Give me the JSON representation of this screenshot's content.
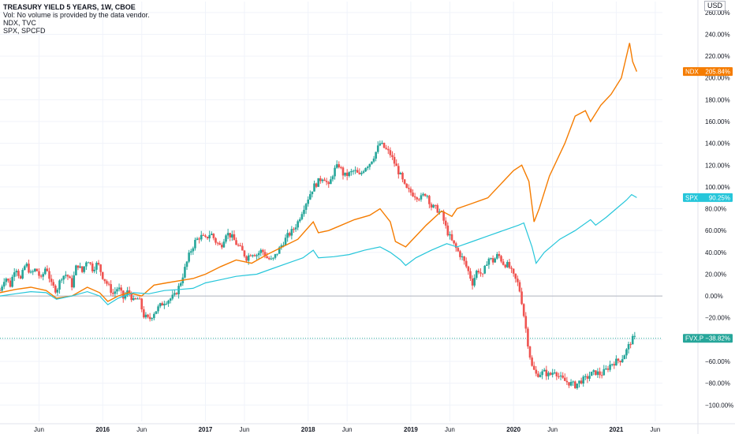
{
  "legend": {
    "title": "TREASURY YIELD 5 YEARS, 1W, CBOE",
    "vol_note": "Vol: No volume is provided by the data vendor.",
    "series_ndx": "NDX, TVC",
    "series_spx": "SPX, SPCFD"
  },
  "currency_label": "USD",
  "colors": {
    "ndx": "#f57c00",
    "spx": "#26c6da",
    "up": "#26a69a",
    "down": "#ef5350",
    "grid": "#f0f3fa",
    "zero_line": "#b2b5be"
  },
  "chart_data": {
    "type": "line",
    "y_unit": "%",
    "yticks": [
      "260.00%",
      "240.00%",
      "220.00%",
      "200.00%",
      "180.00%",
      "160.00%",
      "140.00%",
      "120.00%",
      "100.00%",
      "80.00%",
      "60.00%",
      "40.00%",
      "20.00%",
      "0.00%",
      "−20.00%",
      "−40.00%",
      "−60.00%",
      "−80.00%",
      "−100.00%"
    ],
    "ytick_values": [
      260,
      240,
      220,
      200,
      180,
      160,
      140,
      120,
      100,
      80,
      60,
      40,
      20,
      0,
      -20,
      -40,
      -60,
      -80,
      -100
    ],
    "ylim": [
      -115,
      270
    ],
    "xlim": [
      2015.0,
      2021.45
    ],
    "xticks": [
      {
        "label": "Jun",
        "t": 2015.38,
        "major": false
      },
      {
        "label": "2016",
        "t": 2016.0,
        "major": true
      },
      {
        "label": "Jun",
        "t": 2016.38,
        "major": false
      },
      {
        "label": "2017",
        "t": 2017.0,
        "major": true
      },
      {
        "label": "Jun",
        "t": 2017.38,
        "major": false
      },
      {
        "label": "2018",
        "t": 2018.0,
        "major": true
      },
      {
        "label": "Jun",
        "t": 2018.38,
        "major": false
      },
      {
        "label": "2019",
        "t": 2019.0,
        "major": true
      },
      {
        "label": "Jun",
        "t": 2019.38,
        "major": false
      },
      {
        "label": "2020",
        "t": 2020.0,
        "major": true
      },
      {
        "label": "Jun",
        "t": 2020.38,
        "major": false
      },
      {
        "label": "2021",
        "t": 2021.0,
        "major": true
      },
      {
        "label": "Jun",
        "t": 2021.38,
        "major": false
      }
    ],
    "series": [
      {
        "name": "NDX",
        "last_label": "NDX",
        "last_value": "205.84%",
        "last_numeric": 205.84,
        "points": [
          [
            2015.0,
            3
          ],
          [
            2015.15,
            6
          ],
          [
            2015.3,
            8
          ],
          [
            2015.45,
            5
          ],
          [
            2015.55,
            -2
          ],
          [
            2015.7,
            0
          ],
          [
            2015.85,
            8
          ],
          [
            2015.97,
            3
          ],
          [
            2016.05,
            -5
          ],
          [
            2016.15,
            0
          ],
          [
            2016.25,
            3
          ],
          [
            2016.38,
            0
          ],
          [
            2016.5,
            10
          ],
          [
            2016.62,
            12
          ],
          [
            2016.75,
            14
          ],
          [
            2016.88,
            16
          ],
          [
            2017.0,
            20
          ],
          [
            2017.15,
            27
          ],
          [
            2017.3,
            33
          ],
          [
            2017.45,
            30
          ],
          [
            2017.6,
            38
          ],
          [
            2017.75,
            45
          ],
          [
            2017.9,
            52
          ],
          [
            2018.05,
            68
          ],
          [
            2018.1,
            58
          ],
          [
            2018.2,
            60
          ],
          [
            2018.3,
            64
          ],
          [
            2018.45,
            70
          ],
          [
            2018.6,
            74
          ],
          [
            2018.7,
            80
          ],
          [
            2018.8,
            68
          ],
          [
            2018.85,
            50
          ],
          [
            2018.95,
            45
          ],
          [
            2019.05,
            55
          ],
          [
            2019.15,
            65
          ],
          [
            2019.3,
            78
          ],
          [
            2019.4,
            73
          ],
          [
            2019.45,
            80
          ],
          [
            2019.6,
            85
          ],
          [
            2019.75,
            90
          ],
          [
            2019.9,
            105
          ],
          [
            2020.0,
            115
          ],
          [
            2020.08,
            120
          ],
          [
            2020.15,
            105
          ],
          [
            2020.2,
            68
          ],
          [
            2020.25,
            80
          ],
          [
            2020.35,
            110
          ],
          [
            2020.5,
            140
          ],
          [
            2020.6,
            165
          ],
          [
            2020.7,
            170
          ],
          [
            2020.75,
            160
          ],
          [
            2020.85,
            175
          ],
          [
            2020.95,
            185
          ],
          [
            2021.05,
            200
          ],
          [
            2021.1,
            220
          ],
          [
            2021.13,
            232
          ],
          [
            2021.16,
            215
          ],
          [
            2021.2,
            205.84
          ]
        ]
      },
      {
        "name": "SPX",
        "last_label": "SPX",
        "last_value": "90.25%",
        "last_numeric": 90.25,
        "points": [
          [
            2015.0,
            0
          ],
          [
            2015.15,
            2
          ],
          [
            2015.3,
            4
          ],
          [
            2015.45,
            3
          ],
          [
            2015.55,
            -3
          ],
          [
            2015.7,
            0
          ],
          [
            2015.85,
            4
          ],
          [
            2015.97,
            0
          ],
          [
            2016.05,
            -8
          ],
          [
            2016.15,
            -2
          ],
          [
            2016.3,
            3
          ],
          [
            2016.45,
            2
          ],
          [
            2016.6,
            5
          ],
          [
            2016.75,
            6
          ],
          [
            2016.88,
            7
          ],
          [
            2017.0,
            12
          ],
          [
            2017.15,
            15
          ],
          [
            2017.3,
            18
          ],
          [
            2017.5,
            20
          ],
          [
            2017.65,
            25
          ],
          [
            2017.8,
            30
          ],
          [
            2017.95,
            35
          ],
          [
            2018.05,
            42
          ],
          [
            2018.1,
            35
          ],
          [
            2018.25,
            36
          ],
          [
            2018.4,
            38
          ],
          [
            2018.55,
            42
          ],
          [
            2018.7,
            45
          ],
          [
            2018.8,
            40
          ],
          [
            2018.9,
            33
          ],
          [
            2018.95,
            28
          ],
          [
            2019.05,
            35
          ],
          [
            2019.2,
            42
          ],
          [
            2019.35,
            48
          ],
          [
            2019.45,
            45
          ],
          [
            2019.6,
            50
          ],
          [
            2019.75,
            55
          ],
          [
            2019.9,
            60
          ],
          [
            2020.05,
            65
          ],
          [
            2020.1,
            67
          ],
          [
            2020.18,
            45
          ],
          [
            2020.22,
            30
          ],
          [
            2020.3,
            40
          ],
          [
            2020.45,
            52
          ],
          [
            2020.6,
            60
          ],
          [
            2020.75,
            70
          ],
          [
            2020.8,
            65
          ],
          [
            2020.9,
            72
          ],
          [
            2021.0,
            80
          ],
          [
            2021.1,
            88
          ],
          [
            2021.15,
            93
          ],
          [
            2021.2,
            90.25
          ]
        ]
      },
      {
        "name": "FVX.P",
        "last_label": "FVX.P",
        "last_value": "−38.82%",
        "last_numeric": -38.82,
        "type": "candles",
        "path": [
          [
            2015.0,
            5
          ],
          [
            2015.05,
            18
          ],
          [
            2015.1,
            10
          ],
          [
            2015.15,
            28
          ],
          [
            2015.2,
            15
          ],
          [
            2015.25,
            30
          ],
          [
            2015.3,
            20
          ],
          [
            2015.35,
            25
          ],
          [
            2015.4,
            15
          ],
          [
            2015.45,
            28
          ],
          [
            2015.5,
            10
          ],
          [
            2015.55,
            5
          ],
          [
            2015.6,
            18
          ],
          [
            2015.65,
            20
          ],
          [
            2015.7,
            10
          ],
          [
            2015.75,
            30
          ],
          [
            2015.8,
            22
          ],
          [
            2015.85,
            35
          ],
          [
            2015.9,
            25
          ],
          [
            2015.95,
            30
          ],
          [
            2016.0,
            18
          ],
          [
            2016.05,
            10
          ],
          [
            2016.1,
            2
          ],
          [
            2016.15,
            8
          ],
          [
            2016.2,
            -2
          ],
          [
            2016.25,
            5
          ],
          [
            2016.3,
            -5
          ],
          [
            2016.35,
            -2
          ],
          [
            2016.4,
            -18
          ],
          [
            2016.45,
            -22
          ],
          [
            2016.5,
            -15
          ],
          [
            2016.55,
            -10
          ],
          [
            2016.6,
            -5
          ],
          [
            2016.65,
            -3
          ],
          [
            2016.7,
            0
          ],
          [
            2016.75,
            10
          ],
          [
            2016.8,
            25
          ],
          [
            2016.85,
            40
          ],
          [
            2016.9,
            50
          ],
          [
            2016.95,
            55
          ],
          [
            2017.0,
            52
          ],
          [
            2017.05,
            58
          ],
          [
            2017.1,
            50
          ],
          [
            2017.15,
            45
          ],
          [
            2017.2,
            58
          ],
          [
            2017.25,
            55
          ],
          [
            2017.3,
            48
          ],
          [
            2017.35,
            42
          ],
          [
            2017.4,
            35
          ],
          [
            2017.45,
            40
          ],
          [
            2017.5,
            38
          ],
          [
            2017.55,
            42
          ],
          [
            2017.6,
            35
          ],
          [
            2017.65,
            32
          ],
          [
            2017.7,
            40
          ],
          [
            2017.75,
            48
          ],
          [
            2017.8,
            55
          ],
          [
            2017.85,
            60
          ],
          [
            2017.9,
            68
          ],
          [
            2017.95,
            80
          ],
          [
            2018.0,
            90
          ],
          [
            2018.05,
            100
          ],
          [
            2018.1,
            105
          ],
          [
            2018.15,
            110
          ],
          [
            2018.2,
            100
          ],
          [
            2018.25,
            115
          ],
          [
            2018.3,
            120
          ],
          [
            2018.35,
            110
          ],
          [
            2018.4,
            112
          ],
          [
            2018.45,
            115
          ],
          [
            2018.5,
            110
          ],
          [
            2018.55,
            118
          ],
          [
            2018.6,
            122
          ],
          [
            2018.65,
            130
          ],
          [
            2018.7,
            140
          ],
          [
            2018.75,
            135
          ],
          [
            2018.8,
            130
          ],
          [
            2018.85,
            120
          ],
          [
            2018.9,
            110
          ],
          [
            2018.95,
            98
          ],
          [
            2019.0,
            95
          ],
          [
            2019.05,
            92
          ],
          [
            2019.1,
            90
          ],
          [
            2019.15,
            95
          ],
          [
            2019.2,
            82
          ],
          [
            2019.25,
            80
          ],
          [
            2019.3,
            75
          ],
          [
            2019.35,
            60
          ],
          [
            2019.4,
            50
          ],
          [
            2019.45,
            42
          ],
          [
            2019.5,
            35
          ],
          [
            2019.55,
            25
          ],
          [
            2019.6,
            12
          ],
          [
            2019.65,
            25
          ],
          [
            2019.7,
            18
          ],
          [
            2019.75,
            35
          ],
          [
            2019.8,
            32
          ],
          [
            2019.85,
            38
          ],
          [
            2019.9,
            30
          ],
          [
            2019.95,
            28
          ],
          [
            2020.0,
            18
          ],
          [
            2020.05,
            10
          ],
          [
            2020.08,
            -5
          ],
          [
            2020.12,
            -30
          ],
          [
            2020.15,
            -50
          ],
          [
            2020.18,
            -65
          ],
          [
            2020.22,
            -72
          ],
          [
            2020.3,
            -70
          ],
          [
            2020.35,
            -73
          ],
          [
            2020.4,
            -68
          ],
          [
            2020.45,
            -75
          ],
          [
            2020.5,
            -78
          ],
          [
            2020.55,
            -80
          ],
          [
            2020.6,
            -82
          ],
          [
            2020.65,
            -78
          ],
          [
            2020.7,
            -76
          ],
          [
            2020.75,
            -72
          ],
          [
            2020.8,
            -70
          ],
          [
            2020.85,
            -72
          ],
          [
            2020.9,
            -68
          ],
          [
            2020.95,
            -62
          ],
          [
            2021.0,
            -60
          ],
          [
            2021.05,
            -58
          ],
          [
            2021.1,
            -50
          ],
          [
            2021.15,
            -40
          ],
          [
            2021.18,
            -38.82
          ]
        ]
      }
    ]
  }
}
